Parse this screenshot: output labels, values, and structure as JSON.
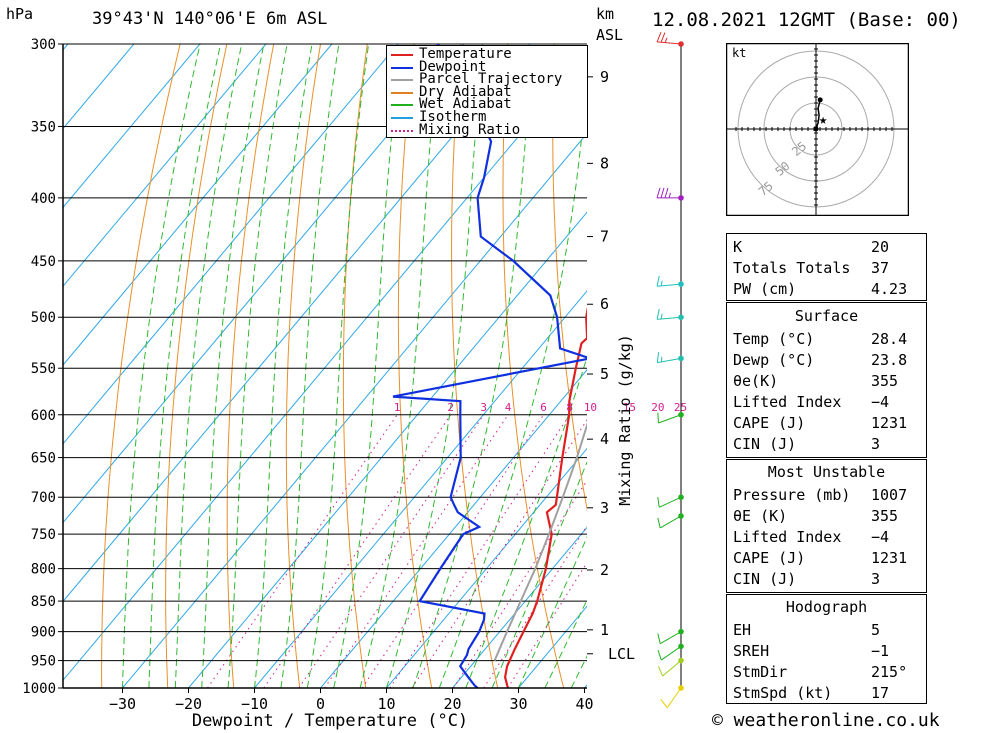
{
  "header": {
    "pressure_unit": "hPa",
    "location": "39°43'N  140°06'E  6m  ASL",
    "km_unit": "km",
    "km_unit2": "ASL",
    "datetime": "12.08.2021  12GMT  (Base: 00)"
  },
  "footer": {
    "credit": "© weatheronline.co.uk"
  },
  "chart_data": {
    "type": "skew-t log-p",
    "xlabel": "Dewpoint / Temperature (°C)",
    "ylabel_right": "Mixing Ratio (g/kg)",
    "pressure_levels": [
      300,
      350,
      400,
      450,
      500,
      550,
      600,
      650,
      700,
      750,
      800,
      850,
      900,
      950,
      1000
    ],
    "temperature_ticks": [
      -30,
      -20,
      -10,
      0,
      10,
      20,
      30,
      40
    ],
    "xlim": [
      -40,
      40
    ],
    "ylim": [
      1000,
      300
    ],
    "height_km_ticks": [
      {
        "label": "9",
        "p": 319
      },
      {
        "label": "8",
        "p": 375
      },
      {
        "label": "7",
        "p": 430
      },
      {
        "label": "6",
        "p": 488
      },
      {
        "label": "5",
        "p": 556
      },
      {
        "label": "4",
        "p": 628
      },
      {
        "label": "3",
        "p": 714
      },
      {
        "label": "2",
        "p": 802
      },
      {
        "label": "1",
        "p": 897
      },
      {
        "label": "LCL",
        "p": 938
      }
    ],
    "mixing_ratio_labels": [
      "1",
      "2",
      "3",
      "4",
      "6",
      "8",
      "10",
      "15",
      "20",
      "25"
    ],
    "legend": {
      "position": "top-right",
      "items": [
        {
          "name": "Temperature",
          "color": "#e02020",
          "style": "solid"
        },
        {
          "name": "Dewpoint",
          "color": "#1030e0",
          "style": "solid"
        },
        {
          "name": "Parcel Trajectory",
          "color": "#a0a0a0",
          "style": "solid"
        },
        {
          "name": "Dry Adiabat",
          "color": "#e08020",
          "style": "solid"
        },
        {
          "name": "Wet Adiabat",
          "color": "#20b020",
          "style": "solid"
        },
        {
          "name": "Isotherm",
          "color": "#20a0e0",
          "style": "solid"
        },
        {
          "name": "Mixing Ratio",
          "color": "#d0208f",
          "style": "dotted"
        }
      ]
    },
    "series": [
      {
        "name": "Temperature",
        "color": "#e02020",
        "points": [
          [
            1000,
            28.4
          ],
          [
            980,
            26.6
          ],
          [
            960,
            25.5
          ],
          [
            930,
            24.5
          ],
          [
            900,
            23.6
          ],
          [
            870,
            22.7
          ],
          [
            850,
            21.8
          ],
          [
            800,
            19.0
          ],
          [
            750,
            15.5
          ],
          [
            720,
            12.0
          ],
          [
            710,
            12.4
          ],
          [
            700,
            11.6
          ],
          [
            650,
            7.4
          ],
          [
            600,
            3.0
          ],
          [
            585,
            1.3
          ],
          [
            550,
            -1.9
          ],
          [
            525,
            -4.2
          ],
          [
            520,
            -4.0
          ],
          [
            500,
            -6.8
          ],
          [
            470,
            -10.1
          ],
          [
            450,
            -12.3
          ],
          [
            400,
            -18.8
          ],
          [
            350,
            -26.3
          ],
          [
            340,
            -27.6
          ]
        ]
      },
      {
        "name": "Dewpoint",
        "color": "#1030e0",
        "points": [
          [
            1000,
            23.8
          ],
          [
            995,
            23.0
          ],
          [
            980,
            21.0
          ],
          [
            960,
            18.4
          ],
          [
            940,
            18.0
          ],
          [
            930,
            17.5
          ],
          [
            900,
            16.9
          ],
          [
            880,
            16.1
          ],
          [
            870,
            15.4
          ],
          [
            850,
            4.0
          ],
          [
            800,
            3.0
          ],
          [
            750,
            2.1
          ],
          [
            740,
            3.6
          ],
          [
            720,
            -1.5
          ],
          [
            710,
            -3.0
          ],
          [
            700,
            -4.5
          ],
          [
            650,
            -8.0
          ],
          [
            600,
            -13.5
          ],
          [
            585,
            -15.2
          ],
          [
            580,
            -26.0
          ],
          [
            540,
            -1.0
          ],
          [
            530,
            -6.8
          ],
          [
            500,
            -11.2
          ],
          [
            480,
            -15.0
          ],
          [
            450,
            -25.0
          ],
          [
            430,
            -33.0
          ],
          [
            400,
            -38.4
          ],
          [
            385,
            -40.0
          ],
          [
            360,
            -43.5
          ],
          [
            355,
            -45.0
          ],
          [
            353,
            -57.0
          ],
          [
            350,
            -48.0
          ],
          [
            300,
            -64.0
          ]
        ]
      },
      {
        "name": "Parcel Trajectory",
        "color": "#a0a0a0",
        "points": [
          [
            950,
            22.9
          ],
          [
            900,
            21.1
          ],
          [
            850,
            19.3
          ],
          [
            800,
            17.4
          ],
          [
            750,
            15.1
          ],
          [
            700,
            12.5
          ],
          [
            650,
            9.6
          ],
          [
            600,
            6.2
          ],
          [
            550,
            2.5
          ],
          [
            500,
            -2.0
          ],
          [
            450,
            -7.2
          ],
          [
            400,
            -13.5
          ],
          [
            350,
            -21.2
          ]
        ]
      }
    ],
    "wind_barbs": [
      {
        "p": 1000,
        "color": "#e8d000",
        "dir": 215,
        "kt": 10
      },
      {
        "p": 950,
        "color": "#a0d020",
        "dir": 230,
        "kt": 10
      },
      {
        "p": 925,
        "color": "#20b020",
        "dir": 235,
        "kt": 10
      },
      {
        "p": 900,
        "color": "#20b020",
        "dir": 240,
        "kt": 10
      },
      {
        "p": 725,
        "color": "#20b020",
        "dir": 240,
        "kt": 10
      },
      {
        "p": 700,
        "color": "#20b020",
        "dir": 245,
        "kt": 10
      },
      {
        "p": 600,
        "color": "#20b020",
        "dir": 250,
        "kt": 10
      },
      {
        "p": 540,
        "color": "#20c0b0",
        "dir": 260,
        "kt": 15
      },
      {
        "p": 500,
        "color": "#20c0b0",
        "dir": 265,
        "kt": 15
      },
      {
        "p": 470,
        "color": "#20c0c0",
        "dir": 265,
        "kt": 15
      },
      {
        "p": 400,
        "color": "#a020c0",
        "dir": 270,
        "kt": 35
      },
      {
        "p": 300,
        "color": "#e03030",
        "dir": 275,
        "kt": 25
      }
    ],
    "hodograph": {
      "unit": "kt",
      "ring_labels": [
        "25",
        "50",
        "75"
      ],
      "trace": [
        [
          0,
          0
        ],
        [
          1,
          3
        ],
        [
          2,
          6
        ],
        [
          3,
          13
        ],
        [
          2,
          20
        ],
        [
          4,
          28
        ]
      ],
      "storm_motion": {
        "dir": 215,
        "kt": 17
      }
    }
  },
  "indices": {
    "general": [
      {
        "label": "K",
        "value": "20"
      },
      {
        "label": "Totals Totals",
        "value": "37"
      },
      {
        "label": "PW (cm)",
        "value": "4.23"
      }
    ],
    "surface": {
      "title": "Surface",
      "rows": [
        {
          "label": "Temp (°C)",
          "value": "28.4"
        },
        {
          "label": "Dewp (°C)",
          "value": "23.8"
        },
        {
          "label": "θe(K)",
          "value": "355"
        },
        {
          "label": "Lifted Index",
          "value": "-4"
        },
        {
          "label": "CAPE (J)",
          "value": "1231"
        },
        {
          "label": "CIN (J)",
          "value": "3"
        }
      ]
    },
    "most_unstable": {
      "title": "Most Unstable",
      "rows": [
        {
          "label": "Pressure (mb)",
          "value": "1007"
        },
        {
          "label": "θE (K)",
          "value": "355"
        },
        {
          "label": "Lifted Index",
          "value": "-4"
        },
        {
          "label": "CAPE (J)",
          "value": "1231"
        },
        {
          "label": "CIN (J)",
          "value": "3"
        }
      ]
    },
    "hodograph": {
      "title": "Hodograph",
      "rows": [
        {
          "label": "EH",
          "value": "5"
        },
        {
          "label": "SREH",
          "value": "-1"
        },
        {
          "label": "StmDir",
          "value": "215°"
        },
        {
          "label": "StmSpd (kt)",
          "value": "17"
        }
      ]
    }
  }
}
